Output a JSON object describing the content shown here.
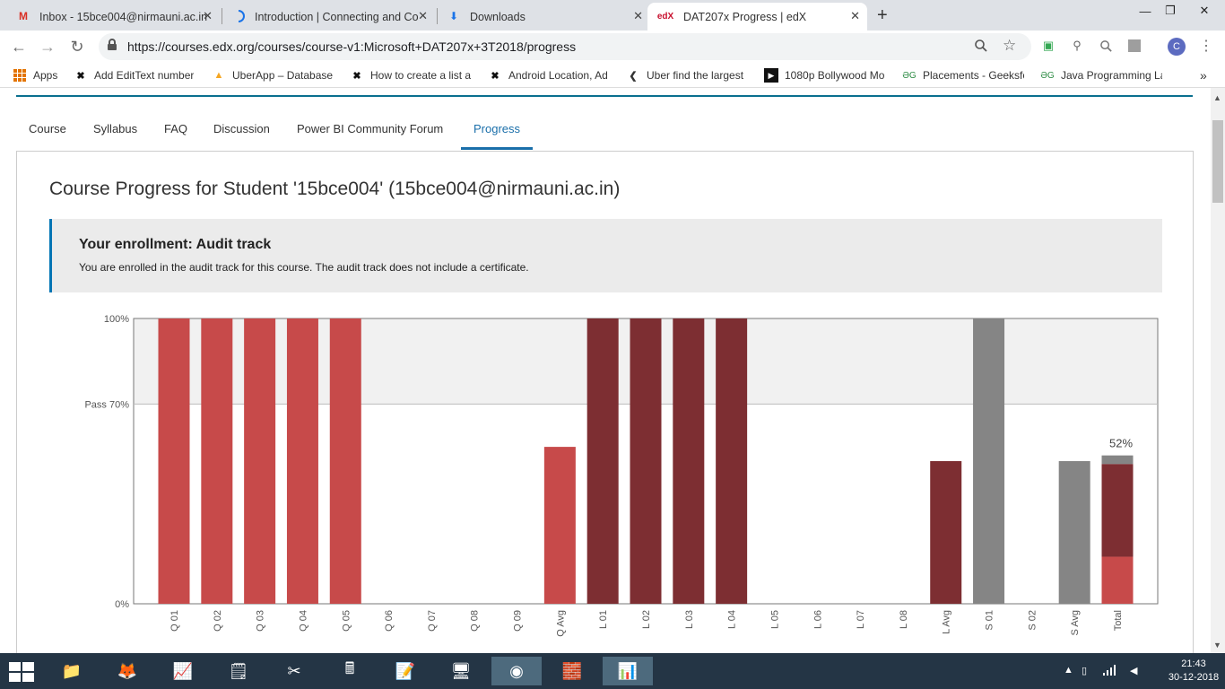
{
  "browser": {
    "tabs": [
      {
        "label": "Inbox - 15bce004@nirmauni.ac.in",
        "icon": "gmail-icon",
        "glyph": "M",
        "color": "#d93025",
        "active": false
      },
      {
        "label": "Introduction | Connecting and Co",
        "icon": "loading-spinner-icon",
        "glyph": "◌",
        "color": "#1a73e8",
        "active": false
      },
      {
        "label": "Downloads",
        "icon": "download-icon",
        "glyph": "⬇",
        "color": "#1a73e8",
        "active": false
      },
      {
        "label": "DAT207x Progress | edX",
        "icon": "edx-icon",
        "glyph": "edX",
        "color": "#c8102e",
        "active": true
      }
    ],
    "new_tab": "+",
    "window_controls": {
      "minimize": "—",
      "restore": "❐",
      "close": "✕"
    },
    "url": "https://courses.edx.org/courses/course-v1:Microsoft+DAT207x+3T2018/progress",
    "avatar_letter": "C",
    "bookmarks": [
      {
        "label": "Apps",
        "icon": "apps-grid-icon"
      },
      {
        "label": "Add EditText number",
        "icon": "x-logo-icon",
        "glyph": "✖",
        "color": "#111"
      },
      {
        "label": "UberApp – Database",
        "icon": "firebase-icon",
        "glyph": "🔥",
        "color": "#f5a623"
      },
      {
        "label": "How to create a list a",
        "icon": "x-logo-icon",
        "glyph": "✖",
        "color": "#111"
      },
      {
        "label": "Android Location, Ad",
        "icon": "x-logo-icon",
        "glyph": "✖",
        "color": "#111"
      },
      {
        "label": "Uber find the largest",
        "icon": "codepath-icon",
        "glyph": "❮",
        "color": "#333"
      },
      {
        "label": "1080p Bollywood Mo",
        "icon": "play-icon",
        "glyph": "▶",
        "color": "#111"
      },
      {
        "label": "Placements - Geeksfo",
        "icon": "geeksforgeeks-icon",
        "glyph": "ƏG",
        "color": "#2f8d46"
      },
      {
        "label": "Java Programming La",
        "icon": "geeksforgeeks-icon",
        "glyph": "ƏG",
        "color": "#2f8d46"
      }
    ],
    "bookmarks_overflow": "»"
  },
  "course_nav": [
    {
      "label": "Course",
      "active": false
    },
    {
      "label": "Syllabus",
      "active": false
    },
    {
      "label": "FAQ",
      "active": false
    },
    {
      "label": "Discussion",
      "active": false
    },
    {
      "label": "Power BI Community Forum",
      "active": false
    },
    {
      "label": "Progress",
      "active": true
    }
  ],
  "page_title": "Course Progress for Student '15bce004' (15bce004@nirmauni.ac.in)",
  "enrollment": {
    "title": "Your enrollment: Audit track",
    "text": "You are enrolled in the audit track for this course. The audit track does not include a certificate."
  },
  "chart_data": {
    "type": "bar",
    "ylim": [
      0,
      100
    ],
    "y_tick_labels": [
      {
        "value": 100,
        "label": "100%"
      },
      {
        "value": 70,
        "label": "Pass 70%"
      },
      {
        "value": 0,
        "label": "0%"
      }
    ],
    "pass_threshold": 70,
    "categories": [
      "Q 01",
      "Q 02",
      "Q 03",
      "Q 04",
      "Q 05",
      "Q 06",
      "Q 07",
      "Q 08",
      "Q 09",
      "Q Avg",
      "L 01",
      "L 02",
      "L 03",
      "L 04",
      "L 05",
      "L 06",
      "L 07",
      "L 08",
      "L Avg",
      "S 01",
      "S 02",
      "S Avg",
      "Total"
    ],
    "values": [
      100,
      100,
      100,
      100,
      100,
      0,
      0,
      0,
      0,
      55,
      100,
      100,
      100,
      100,
      0,
      0,
      0,
      0,
      50,
      100,
      0,
      50,
      52
    ],
    "colors": [
      "#c74a4a",
      "#c74a4a",
      "#c74a4a",
      "#c74a4a",
      "#c74a4a",
      "#c74a4a",
      "#c74a4a",
      "#c74a4a",
      "#c74a4a",
      "#c74a4a",
      "#7d2e32",
      "#7d2e32",
      "#7d2e32",
      "#7d2e32",
      "#7d2e32",
      "#7d2e32",
      "#7d2e32",
      "#7d2e32",
      "#7d2e32",
      "#858585",
      "#858585",
      "#858585",
      "stacked"
    ],
    "total_segments": [
      {
        "value": 16.5,
        "color": "#c74a4a"
      },
      {
        "value": 32.5,
        "color": "#7d2e32"
      },
      {
        "value": 3,
        "color": "#858585"
      }
    ],
    "total_label": "52%"
  },
  "taskbar": {
    "apps": [
      {
        "name": "file-explorer-icon",
        "glyph": "📁"
      },
      {
        "name": "firefox-icon",
        "glyph": "🦊"
      },
      {
        "name": "task-manager-icon",
        "glyph": "📈"
      },
      {
        "name": "sticky-notes-icon",
        "glyph": "🗒"
      },
      {
        "name": "snipping-tool-icon",
        "glyph": "✂"
      },
      {
        "name": "calculator-icon",
        "glyph": "🖩"
      },
      {
        "name": "notepad-icon",
        "glyph": "📝"
      },
      {
        "name": "control-panel-icon",
        "glyph": "🖥"
      },
      {
        "name": "chrome-icon",
        "glyph": "◉"
      },
      {
        "name": "network-icon",
        "glyph": "🧱"
      },
      {
        "name": "power-bi-icon",
        "glyph": "📊"
      }
    ],
    "time": "21:43",
    "date": "30-12-2018"
  }
}
